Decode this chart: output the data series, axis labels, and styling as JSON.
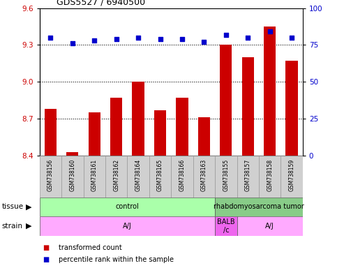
{
  "title": "GDS5527 / 6940500",
  "samples": [
    "GSM738156",
    "GSM738160",
    "GSM738161",
    "GSM738162",
    "GSM738164",
    "GSM738165",
    "GSM738166",
    "GSM738163",
    "GSM738155",
    "GSM738157",
    "GSM738158",
    "GSM738159"
  ],
  "bar_values": [
    8.78,
    8.43,
    8.75,
    8.87,
    9.0,
    8.77,
    8.87,
    8.71,
    9.3,
    9.2,
    9.45,
    9.17
  ],
  "dot_values": [
    80,
    76,
    78,
    79,
    80,
    79,
    79,
    77,
    82,
    80,
    84,
    80
  ],
  "bar_color": "#cc0000",
  "dot_color": "#0000cc",
  "ylim_left": [
    8.4,
    9.6
  ],
  "ybase": 8.4,
  "ylim_right": [
    0,
    100
  ],
  "yticks_left": [
    8.4,
    8.7,
    9.0,
    9.3,
    9.6
  ],
  "yticks_right": [
    0,
    25,
    50,
    75,
    100
  ],
  "hlines": [
    8.7,
    9.0,
    9.3
  ],
  "tissue_groups": [
    {
      "label": "control",
      "start": 0,
      "end": 8,
      "color": "#aaffaa"
    },
    {
      "label": "rhabdomyosarcoma tumor",
      "start": 8,
      "end": 12,
      "color": "#88cc88"
    }
  ],
  "strain_groups": [
    {
      "label": "A/J",
      "start": 0,
      "end": 8,
      "color": "#ffaaff"
    },
    {
      "label": "BALB\n/c",
      "start": 8,
      "end": 9,
      "color": "#ee66ee"
    },
    {
      "label": "A/J",
      "start": 9,
      "end": 12,
      "color": "#ffaaff"
    }
  ],
  "legend_items": [
    {
      "label": "transformed count",
      "color": "#cc0000"
    },
    {
      "label": "percentile rank within the sample",
      "color": "#0000cc"
    }
  ],
  "background_color": "#ffffff",
  "plot_bg_color": "#ffffff",
  "tick_label_color_left": "#cc0000",
  "tick_label_color_right": "#0000cc",
  "tissue_label": "tissue",
  "strain_label": "strain"
}
